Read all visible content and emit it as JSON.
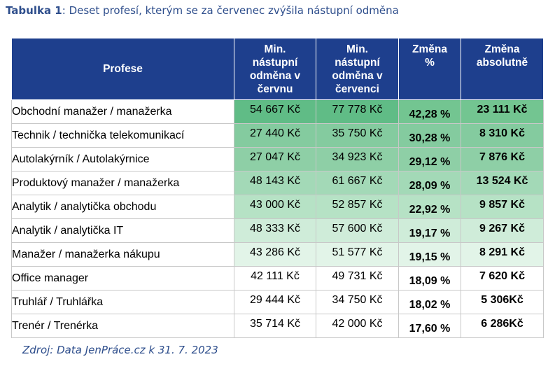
{
  "caption": {
    "label": "Tabulka 1",
    "text": ": Deset profesí, kterým se za červenec zvýšila nástupní odměna"
  },
  "header": {
    "profession": "Profese",
    "june": [
      "Min.",
      "nástupní",
      "odměna v",
      "červnu"
    ],
    "july": [
      "Min.",
      "nástupní",
      "odměna v",
      "červenci"
    ],
    "change_pct": [
      "Změna",
      "%"
    ],
    "change_abs": [
      "Změna",
      "absolutně"
    ]
  },
  "rows": [
    {
      "profession": "Obchodní manažer / manažerka",
      "june": "54 667 Kč",
      "july": "77 778 Kč",
      "change_pct": "42,28 %",
      "change_abs": "23 111 Kč",
      "bg_salary": "#60bc86",
      "bg_change": "#73c591"
    },
    {
      "profession": "Technik / technička telekomunikací",
      "june": "27 440 Kč",
      "july": "35 750 Kč",
      "change_pct": "30,28 %",
      "change_abs": "8 310 Kč",
      "bg_salary": "#84cb9f",
      "bg_change": "#84cb9f"
    },
    {
      "profession": "Autolakýrník / Autolakýrnice",
      "june": "27 047 Kč",
      "july": "34 923 Kč",
      "change_pct": "29,12 %",
      "change_abs": "7 876 Kč",
      "bg_salary": "#8ecfa6",
      "bg_change": "#8ecfa6"
    },
    {
      "profession": "Produktový manažer / manažerka",
      "june": "48 143 Kč",
      "july": "61 667 Kč",
      "change_pct": "28,09 %",
      "change_abs": "13 524 Kč",
      "bg_salary": "#a3d9b7",
      "bg_change": "#a3d9b7"
    },
    {
      "profession": "Analytik / analytička obchodu",
      "june": "43 000 Kč",
      "july": "52 857 Kč",
      "change_pct": "22,92 %",
      "change_abs": "9 857 Kč",
      "bg_salary": "#b6e2c5",
      "bg_change": "#b6e2c5"
    },
    {
      "profession": "Analytik / analytička IT",
      "june": "48 333 Kč",
      "july": "57 600 Kč",
      "change_pct": "19,17 %",
      "change_abs": "9 267 Kč",
      "bg_salary": "#cfecd9",
      "bg_change": "#cfecd9"
    },
    {
      "profession": "Manažer / manažerka nákupu",
      "june": "43 286 Kč",
      "july": "51 577 Kč",
      "change_pct": "19,15 %",
      "change_abs": "8 291 Kč",
      "bg_salary": "#e2f4e8",
      "bg_change": "#e2f4e8"
    },
    {
      "profession": "Office manager",
      "june": "42 111 Kč",
      "july": "49 731 Kč",
      "change_pct": "18,09 %",
      "change_abs": "7 620 Kč",
      "bg_salary": "#ffffff",
      "bg_change": "#ffffff"
    },
    {
      "profession": "Truhlář / Truhlářka",
      "june": "29 444 Kč",
      "july": "34 750 Kč",
      "change_pct": "18,02 %",
      "change_abs": "5 306Kč",
      "bg_salary": "#ffffff",
      "bg_change": "#ffffff"
    },
    {
      "profession": "Trenér / Trenérka",
      "june": "35 714 Kč",
      "july": "42 000 Kč",
      "change_pct": "17,60 %",
      "change_abs": "6 286Kč",
      "bg_salary": "#ffffff",
      "bg_change": "#ffffff"
    }
  ],
  "source": "Zdroj: Data JenPráce.cz k 31. 7. 2023",
  "colors": {
    "header_bg": "#1e3f8d",
    "caption": "#2e4e8c"
  }
}
